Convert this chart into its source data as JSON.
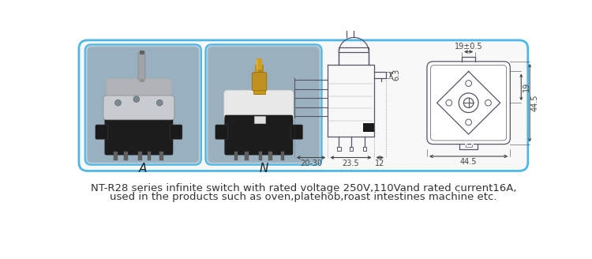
{
  "bg_color": "#ffffff",
  "border_color": "#4db8e8",
  "photo_bg_left": "#b8ccd8",
  "photo_bg_right": "#c0cfd8",
  "label_A": "A",
  "label_N": "N",
  "label_color": "#222222",
  "text_line1": "NT-R28 series infinite switch with rated voltage 250V,110Vand rated current16A,",
  "text_line2": "used in the products such as oven,platehob,roast intestines machine etc.",
  "text_color": "#333333",
  "text_fontsize": 9.5,
  "draw_color": "#555566",
  "dim_color": "#444444",
  "dim_fontsize": 7.0,
  "dim_19pm": "19±0.5",
  "dim_63": "6.3",
  "dim_19": "19",
  "dim_445": "44.5",
  "dim_445b": "44.5",
  "dim_2030": "20-30",
  "dim_235": "23.5",
  "dim_12": "12"
}
